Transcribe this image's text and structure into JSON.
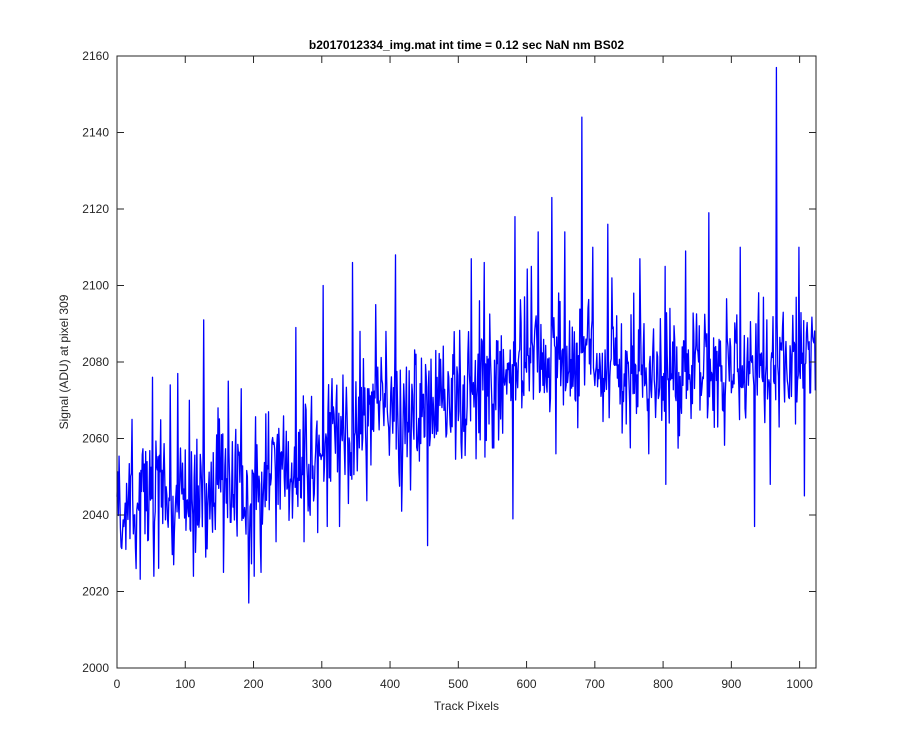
{
  "chart_data": {
    "type": "line",
    "title": "b2017012334_img.mat int time = 0.12 sec  NaN nm BS02",
    "xlabel": "Track Pixels",
    "ylabel": "Signal (ADU) at pixel 309",
    "xlim": [
      0,
      1024
    ],
    "ylim": [
      2000,
      2160
    ],
    "xticks": [
      0,
      100,
      200,
      300,
      400,
      500,
      600,
      700,
      800,
      900,
      1000
    ],
    "yticks": [
      2000,
      2020,
      2040,
      2060,
      2080,
      2100,
      2120,
      2140,
      2160
    ],
    "grid": false,
    "legend": "none",
    "series": [
      {
        "color": "#0000ff",
        "n_points": 1024,
        "trend": [
          [
            0,
            2045
          ],
          [
            150,
            2046
          ],
          [
            250,
            2052
          ],
          [
            350,
            2062
          ],
          [
            450,
            2068
          ],
          [
            520,
            2072
          ],
          [
            600,
            2082
          ],
          [
            700,
            2080
          ],
          [
            800,
            2077
          ],
          [
            900,
            2078
          ],
          [
            1023,
            2080
          ]
        ],
        "noise_amplitude": 11,
        "spikes": [
          [
            13,
            2031
          ],
          [
            22,
            2065
          ],
          [
            28,
            2026
          ],
          [
            52,
            2076
          ],
          [
            54,
            2024
          ],
          [
            78,
            2074
          ],
          [
            83,
            2027
          ],
          [
            89,
            2077
          ],
          [
            101,
            2036
          ],
          [
            106,
            2070
          ],
          [
            112,
            2024
          ],
          [
            127,
            2091
          ],
          [
            130,
            2029
          ],
          [
            148,
            2068
          ],
          [
            156,
            2025
          ],
          [
            163,
            2075
          ],
          [
            182,
            2073
          ],
          [
            189,
            2035
          ],
          [
            193,
            2017
          ],
          [
            201,
            2024
          ],
          [
            211,
            2025
          ],
          [
            222,
            2067
          ],
          [
            233,
            2033
          ],
          [
            242,
            2052
          ],
          [
            262,
            2089
          ],
          [
            274,
            2033
          ],
          [
            285,
            2071
          ],
          [
            302,
            2100
          ],
          [
            308,
            2037
          ],
          [
            326,
            2037
          ],
          [
            339,
            2043
          ],
          [
            345,
            2106
          ],
          [
            356,
            2088
          ],
          [
            367,
            2073
          ],
          [
            379,
            2095
          ],
          [
            394,
            2088
          ],
          [
            408,
            2108
          ],
          [
            417,
            2041
          ],
          [
            446,
            2081
          ],
          [
            455,
            2032
          ],
          [
            467,
            2083
          ],
          [
            497,
            2066
          ],
          [
            507,
            2074
          ],
          [
            519,
            2107
          ],
          [
            531,
            2096
          ],
          [
            538,
            2106
          ],
          [
            580,
            2039
          ],
          [
            583,
            2118
          ],
          [
            593,
            2068
          ],
          [
            607,
            2105
          ],
          [
            617,
            2114
          ],
          [
            626,
            2072
          ],
          [
            637,
            2123
          ],
          [
            643,
            2056
          ],
          [
            656,
            2114
          ],
          [
            681,
            2144
          ],
          [
            685,
            2074
          ],
          [
            697,
            2110
          ],
          [
            705,
            2078
          ],
          [
            719,
            2116
          ],
          [
            739,
            2090
          ],
          [
            757,
            2098
          ],
          [
            766,
            2107
          ],
          [
            779,
            2056
          ],
          [
            803,
            2105
          ],
          [
            804,
            2048
          ],
          [
            810,
            2094
          ],
          [
            833,
            2109
          ],
          [
            852,
            2080
          ],
          [
            867,
            2119
          ],
          [
            880,
            2063
          ],
          [
            897,
            2075
          ],
          [
            913,
            2110
          ],
          [
            934,
            2037
          ],
          [
            941,
            2076
          ],
          [
            957,
            2048
          ],
          [
            966,
            2157
          ],
          [
            970,
            2063
          ],
          [
            976,
            2093
          ],
          [
            988,
            2071
          ],
          [
            999,
            2110
          ],
          [
            1007,
            2045
          ],
          [
            1021,
            2085
          ]
        ]
      }
    ]
  }
}
